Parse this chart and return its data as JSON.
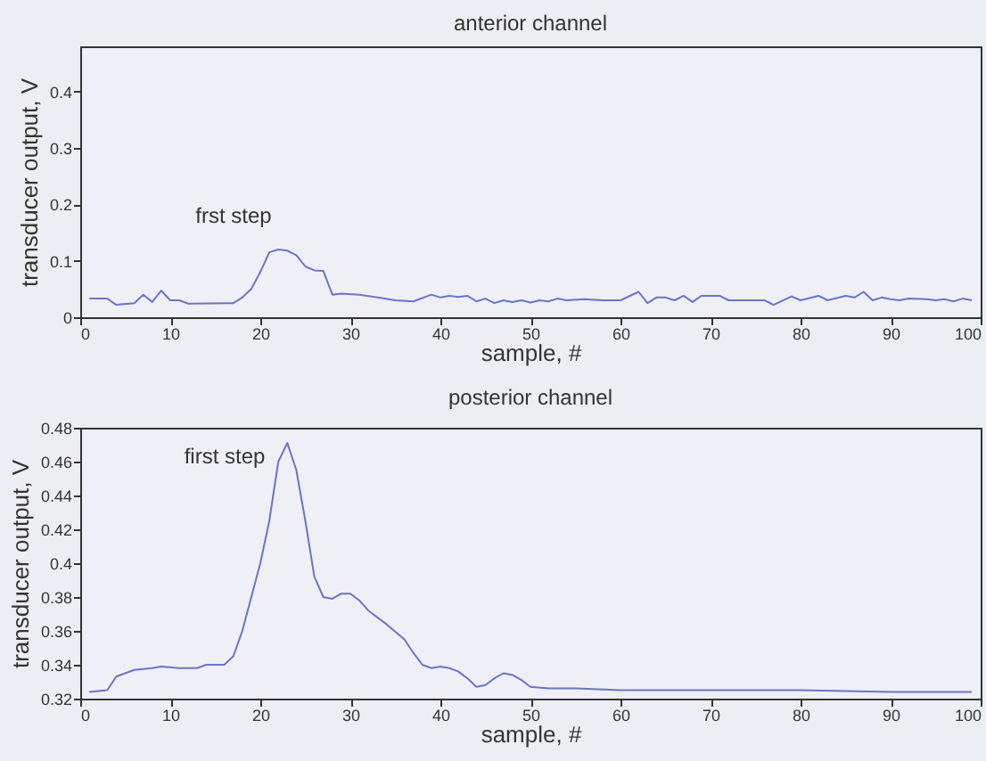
{
  "chart_data": [
    {
      "type": "line",
      "title": "anterior channel",
      "xlabel": "sample, #",
      "ylabel": "transducer output, V",
      "xlim": [
        0,
        100
      ],
      "xticks": [
        0,
        10,
        20,
        30,
        40,
        50,
        60,
        70,
        80,
        90,
        100
      ],
      "ylim": [
        0,
        0.48
      ],
      "yticks": [
        0,
        0.1,
        0.2,
        0.3,
        0.4
      ],
      "series": [
        {
          "color": "#6b74c8",
          "x": [
            1,
            3,
            4,
            6,
            7,
            8,
            9,
            10,
            11,
            12,
            17,
            18,
            19,
            20,
            21,
            22,
            23,
            24,
            25,
            26,
            27,
            28,
            29,
            31,
            33,
            35,
            37,
            39,
            40,
            41,
            42,
            43,
            44,
            45,
            46,
            47,
            48,
            49,
            50,
            51,
            52,
            53,
            54,
            56,
            58,
            60,
            62,
            63,
            64,
            65,
            66,
            67,
            68,
            69,
            71,
            72,
            75,
            76,
            77,
            79,
            80,
            82,
            83,
            85,
            86,
            87,
            88,
            89,
            90,
            91,
            92,
            94,
            95,
            96,
            97,
            98,
            99
          ],
          "values": [
            0.033,
            0.033,
            0.022,
            0.025,
            0.04,
            0.027,
            0.047,
            0.03,
            0.03,
            0.024,
            0.025,
            0.035,
            0.05,
            0.08,
            0.115,
            0.12,
            0.118,
            0.11,
            0.09,
            0.083,
            0.082,
            0.04,
            0.042,
            0.04,
            0.035,
            0.03,
            0.028,
            0.04,
            0.035,
            0.038,
            0.036,
            0.038,
            0.028,
            0.033,
            0.025,
            0.03,
            0.027,
            0.03,
            0.026,
            0.03,
            0.028,
            0.033,
            0.03,
            0.032,
            0.03,
            0.03,
            0.045,
            0.025,
            0.035,
            0.035,
            0.03,
            0.038,
            0.027,
            0.038,
            0.038,
            0.03,
            0.03,
            0.03,
            0.022,
            0.037,
            0.03,
            0.038,
            0.03,
            0.038,
            0.035,
            0.045,
            0.03,
            0.035,
            0.032,
            0.03,
            0.033,
            0.032,
            0.03,
            0.032,
            0.028,
            0.033,
            0.03
          ]
        }
      ],
      "annotations": [
        "frst step"
      ]
    },
    {
      "type": "line",
      "title": "posterior channel",
      "xlabel": "sample, #",
      "ylabel": "transducer output, V",
      "xlim": [
        0,
        100
      ],
      "xticks": [
        0,
        10,
        20,
        30,
        40,
        50,
        60,
        70,
        80,
        90,
        100
      ],
      "ylim": [
        0.32,
        0.48
      ],
      "yticks": [
        0.32,
        0.34,
        0.36,
        0.38,
        0.4,
        0.42,
        0.44,
        0.46,
        0.48
      ],
      "series": [
        {
          "color": "#6b74c8",
          "x": [
            1,
            3,
            4,
            6,
            8,
            9,
            11,
            13,
            14,
            16,
            17,
            18,
            19,
            20,
            21,
            22,
            23,
            24,
            25,
            26,
            27,
            28,
            29,
            30,
            31,
            32,
            34,
            36,
            37,
            38,
            39,
            40,
            41,
            42,
            43,
            44,
            45,
            46,
            47,
            48,
            49,
            50,
            52,
            55,
            60,
            70,
            80,
            90,
            99
          ],
          "values": [
            0.324,
            0.325,
            0.333,
            0.337,
            0.338,
            0.339,
            0.338,
            0.338,
            0.34,
            0.34,
            0.345,
            0.36,
            0.38,
            0.4,
            0.425,
            0.46,
            0.471,
            0.455,
            0.425,
            0.392,
            0.38,
            0.379,
            0.382,
            0.382,
            0.378,
            0.372,
            0.364,
            0.355,
            0.347,
            0.34,
            0.338,
            0.339,
            0.338,
            0.336,
            0.332,
            0.327,
            0.328,
            0.332,
            0.335,
            0.334,
            0.331,
            0.327,
            0.326,
            0.326,
            0.325,
            0.325,
            0.325,
            0.324,
            0.324
          ]
        }
      ],
      "annotations": [
        "first step"
      ]
    }
  ]
}
